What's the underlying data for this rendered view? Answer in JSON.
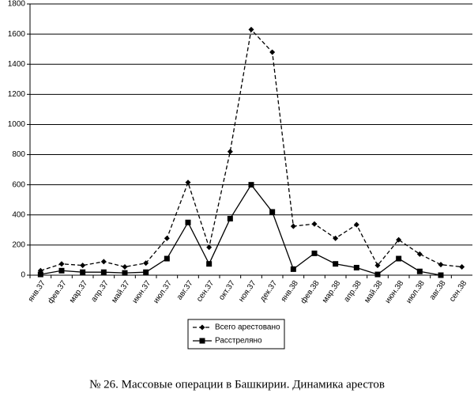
{
  "chart_data": {
    "type": "line",
    "caption": "№ 26. Массовые операции в Башкирии. Динамика арестов",
    "categories": [
      "янв.37",
      "фев.37",
      "мар.37",
      "апр.37",
      "май.37",
      "июн.37",
      "июл.37",
      "авг.37",
      "сен.37",
      "окт.37",
      "ноя.37",
      "дек.37",
      "янв.38",
      "фев.38",
      "мар.38",
      "апр.38",
      "май.38",
      "июн.38",
      "июл.38",
      "авг.38",
      "сен.38"
    ],
    "series": [
      {
        "name": "Всего арестовано",
        "color": "#000000",
        "line_style": "dashed",
        "marker": "diamond",
        "values": [
          30,
          75,
          65,
          90,
          55,
          80,
          245,
          615,
          185,
          820,
          1630,
          1480,
          325,
          340,
          245,
          335,
          65,
          235,
          140,
          70,
          55
        ]
      },
      {
        "name": "Расстреляно",
        "color": "#000000",
        "line_style": "solid",
        "marker": "square",
        "values": [
          5,
          30,
          20,
          20,
          15,
          20,
          110,
          350,
          75,
          375,
          600,
          420,
          40,
          145,
          75,
          50,
          5,
          110,
          25,
          0,
          null
        ]
      }
    ],
    "ylim": [
      0,
      1800
    ],
    "yticks": [
      0,
      200,
      400,
      600,
      800,
      1000,
      1200,
      1400,
      1600,
      1800
    ],
    "grid": true,
    "legend": "bottom"
  }
}
